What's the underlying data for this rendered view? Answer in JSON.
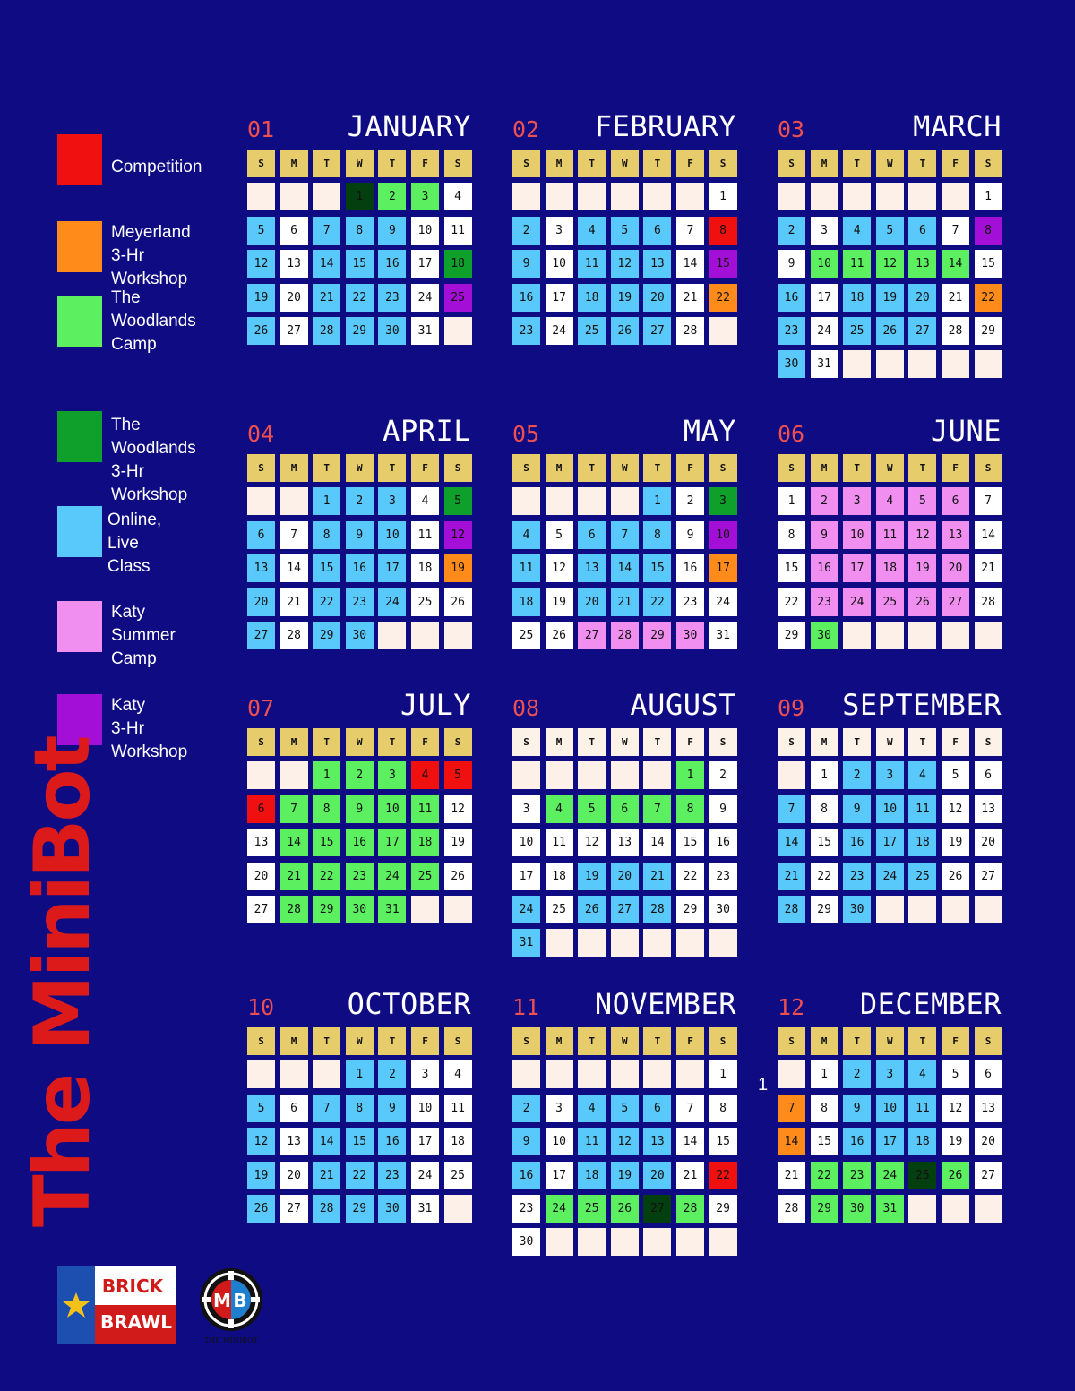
{
  "legend": [
    {
      "label": "Competition",
      "color": "#f01010"
    },
    {
      "label": "Meyerland\n3-Hr Workshop",
      "color": "#ff8c1a"
    },
    {
      "label": "The\nWoodlands\nCamp",
      "color": "#5cf061"
    },
    {
      "label": "The Woodlands\n3-Hr Workshop",
      "color": "#0fa02c"
    },
    {
      "label": "Online, Live\nClass",
      "color": "#59c8fa"
    },
    {
      "label": "Katy\nSummer Camp",
      "color": "#f08ff0"
    },
    {
      "label": "Katy\n3-Hr Workshop",
      "color": "#a40fd7"
    }
  ],
  "colors": {
    "background": "#0e0b83",
    "header_yellow": "#e6cc6a",
    "header_cream": "#fdf2e8",
    "empty": "#fdf0e8",
    "dark_green": "#043f10"
  },
  "day_headers": [
    "S",
    "M",
    "T",
    "W",
    "T",
    "F",
    "S"
  ],
  "months": [
    {
      "num": "01",
      "name": "JANUARY",
      "start": 3,
      "days": 31,
      "header": "yellow",
      "events": {
        "1": "D",
        "2": "W",
        "3": "W",
        "5": "B",
        "7": "B",
        "8": "B",
        "9": "B",
        "12": "B",
        "14": "B",
        "15": "B",
        "16": "B",
        "18": "G",
        "19": "B",
        "21": "B",
        "22": "B",
        "23": "B",
        "25": "P",
        "26": "B",
        "28": "B",
        "29": "B",
        "30": "B"
      }
    },
    {
      "num": "02",
      "name": "FEBRUARY",
      "start": 6,
      "days": 28,
      "header": "yellow",
      "events": {
        "2": "B",
        "4": "B",
        "5": "B",
        "6": "B",
        "8": "C",
        "9": "B",
        "11": "B",
        "12": "B",
        "13": "B",
        "15": "P",
        "16": "B",
        "18": "B",
        "19": "B",
        "20": "B",
        "22": "M",
        "23": "B",
        "25": "B",
        "26": "B",
        "27": "B"
      }
    },
    {
      "num": "03",
      "name": "MARCH",
      "start": 6,
      "days": 31,
      "header": "yellow",
      "events": {
        "2": "B",
        "4": "B",
        "5": "B",
        "6": "B",
        "8": "P",
        "10": "W",
        "11": "W",
        "12": "W",
        "13": "W",
        "14": "W",
        "16": "B",
        "18": "B",
        "19": "B",
        "20": "B",
        "22": "M",
        "23": "B",
        "25": "B",
        "26": "B",
        "27": "B",
        "30": "B"
      }
    },
    {
      "num": "04",
      "name": "APRIL",
      "start": 2,
      "days": 30,
      "header": "yellow",
      "events": {
        "1": "B",
        "2": "B",
        "3": "B",
        "5": "G",
        "6": "B",
        "8": "B",
        "9": "B",
        "10": "B",
        "12": "P",
        "13": "B",
        "15": "B",
        "16": "B",
        "17": "B",
        "19": "M",
        "20": "B",
        "22": "B",
        "23": "B",
        "24": "B",
        "27": "B",
        "29": "B",
        "30": "B"
      }
    },
    {
      "num": "05",
      "name": "MAY",
      "start": 4,
      "days": 31,
      "header": "yellow",
      "events": {
        "1": "B",
        "3": "G",
        "4": "B",
        "6": "B",
        "7": "B",
        "8": "B",
        "10": "P",
        "11": "B",
        "13": "B",
        "14": "B",
        "15": "B",
        "17": "M",
        "18": "B",
        "20": "B",
        "21": "B",
        "22": "B",
        "27": "K",
        "28": "K",
        "29": "K",
        "30": "K"
      }
    },
    {
      "num": "06",
      "name": "JUNE",
      "start": 0,
      "days": 30,
      "header": "yellow",
      "events": {
        "2": "K",
        "3": "K",
        "4": "K",
        "5": "K",
        "6": "K",
        "9": "K",
        "10": "K",
        "11": "K",
        "12": "K",
        "13": "K",
        "16": "K",
        "17": "K",
        "18": "K",
        "19": "K",
        "20": "K",
        "23": "K",
        "24": "K",
        "25": "K",
        "26": "K",
        "27": "K",
        "30": "W"
      }
    },
    {
      "num": "07",
      "name": "JULY",
      "start": 2,
      "days": 31,
      "header": "yellow",
      "events": {
        "1": "W",
        "2": "W",
        "3": "W",
        "4": "C",
        "5": "C",
        "6": "C",
        "7": "W",
        "8": "W",
        "9": "W",
        "10": "W",
        "11": "W",
        "14": "W",
        "15": "W",
        "16": "W",
        "17": "W",
        "18": "W",
        "21": "W",
        "22": "W",
        "23": "W",
        "24": "W",
        "25": "W",
        "28": "W",
        "29": "W",
        "30": "W",
        "31": "W"
      }
    },
    {
      "num": "08",
      "name": "AUGUST",
      "start": 5,
      "days": 31,
      "header": "cream",
      "events": {
        "1": "W",
        "4": "W",
        "5": "W",
        "6": "W",
        "7": "W",
        "8": "W",
        "19": "B",
        "20": "B",
        "21": "B",
        "24": "B",
        "26": "B",
        "27": "B",
        "28": "B",
        "31": "B"
      }
    },
    {
      "num": "09",
      "name": "SEPTEMBER",
      "start": 1,
      "days": 30,
      "header": "cream",
      "events": {
        "2": "B",
        "3": "B",
        "4": "B",
        "7": "B",
        "9": "B",
        "10": "B",
        "11": "B",
        "14": "B",
        "16": "B",
        "17": "B",
        "18": "B",
        "21": "B",
        "23": "B",
        "24": "B",
        "25": "B",
        "28": "B",
        "30": "B"
      }
    },
    {
      "num": "10",
      "name": "OCTOBER",
      "start": 3,
      "days": 31,
      "header": "yellow",
      "events": {
        "1": "B",
        "2": "B",
        "5": "B",
        "7": "B",
        "8": "B",
        "9": "B",
        "12": "B",
        "14": "B",
        "15": "B",
        "16": "B",
        "19": "B",
        "21": "B",
        "22": "B",
        "23": "B",
        "26": "B",
        "28": "B",
        "29": "B",
        "30": "B"
      }
    },
    {
      "num": "11",
      "name": "NOVEMBER",
      "start": 6,
      "days": 30,
      "header": "yellow",
      "events": {
        "2": "B",
        "4": "B",
        "5": "B",
        "6": "B",
        "9": "B",
        "11": "B",
        "12": "B",
        "13": "B",
        "16": "B",
        "18": "B",
        "19": "B",
        "20": "B",
        "22": "C",
        "24": "W",
        "25": "W",
        "26": "W",
        "27": "D",
        "28": "W"
      }
    },
    {
      "num": "12",
      "name": "DECEMBER",
      "start": 1,
      "days": 31,
      "header": "yellow",
      "events": {
        "2": "B",
        "3": "B",
        "4": "B",
        "7": "M",
        "9": "B",
        "10": "B",
        "11": "B",
        "14": "M",
        "16": "B",
        "17": "B",
        "18": "B",
        "22": "W",
        "23": "W",
        "24": "W",
        "25": "D",
        "26": "W",
        "29": "W",
        "30": "W",
        "31": "W"
      }
    }
  ],
  "event_colors": {
    "B": "#59c8fa",
    "W": "#5cf061",
    "G": "#0fa02c",
    "D": "#043f10",
    "C": "#f01010",
    "M": "#ff8c1a",
    "P": "#a40fd7",
    "K": "#f08ff0"
  },
  "vertical_title": "The MiniBot",
  "stray_mark": "1",
  "logos": {
    "brick_line1": "BRICK",
    "brick_line2": "BRAWL",
    "minibot_caption": "THE MINIBOT"
  }
}
